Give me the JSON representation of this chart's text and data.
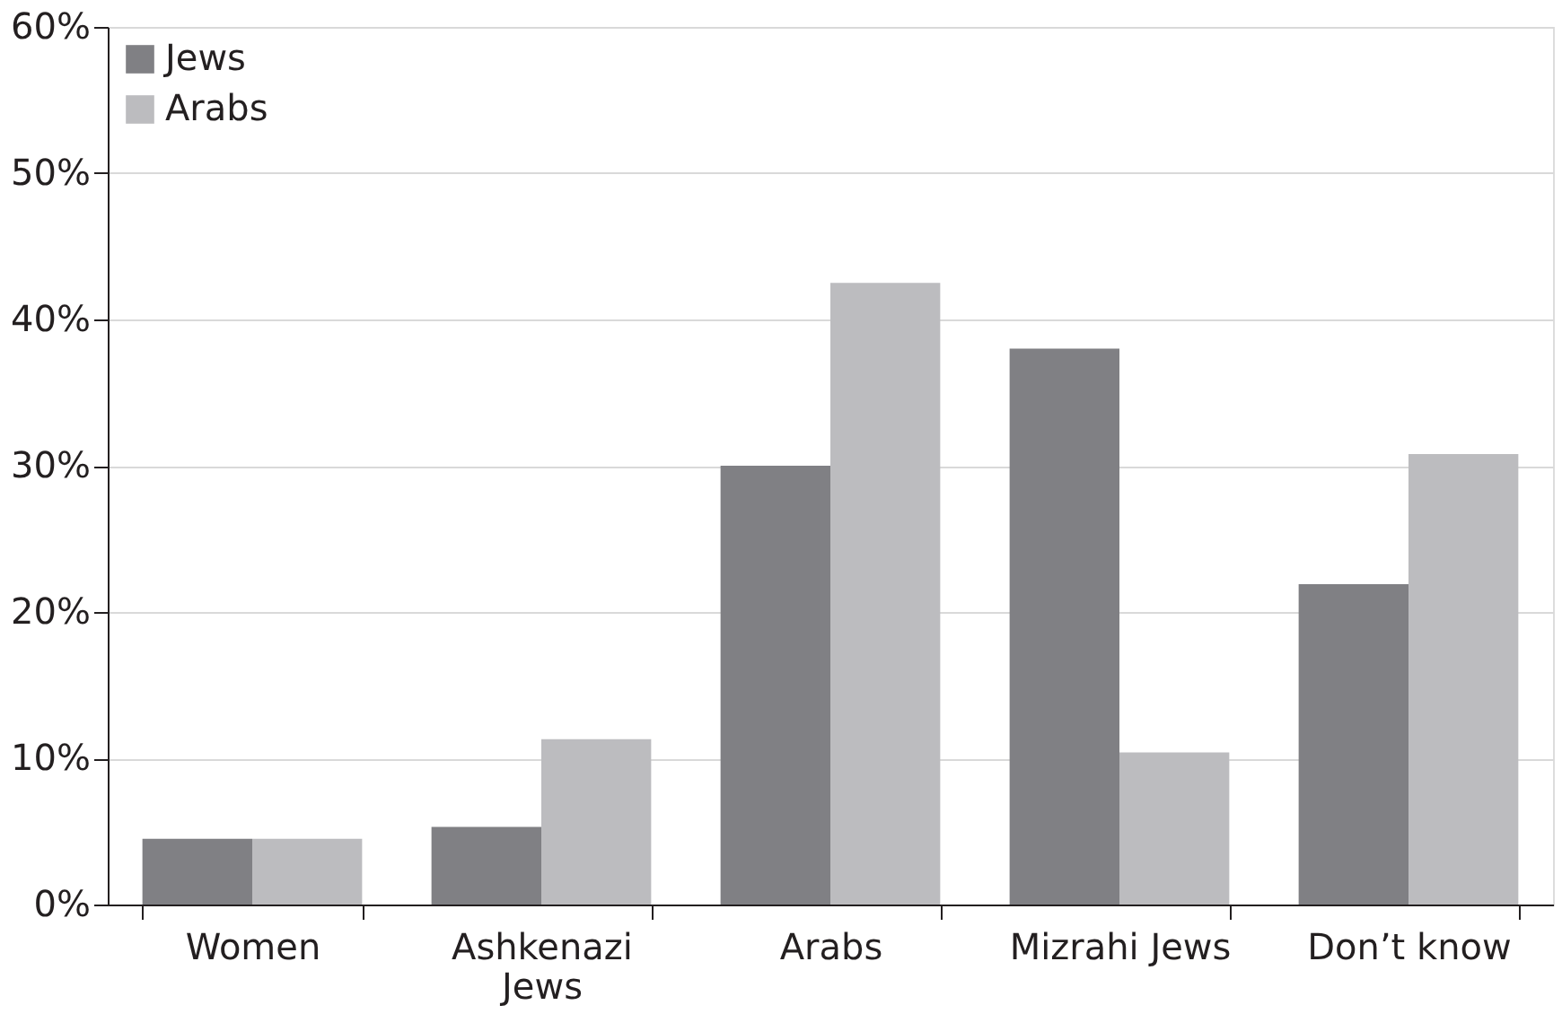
{
  "chart_data": {
    "type": "bar",
    "categories": [
      "Women",
      "Ashkenazi Jews",
      "Arabs",
      "Mizrahi Jews",
      "Don’t know"
    ],
    "series": [
      {
        "name": "Jews",
        "color": "#808084",
        "values": [
          4.5,
          5.3,
          30.0,
          38.0,
          21.9
        ]
      },
      {
        "name": "Arabs",
        "color": "#bcbcbf",
        "values": [
          4.5,
          11.3,
          42.5,
          10.4,
          30.8
        ]
      }
    ],
    "ylim": [
      0,
      60
    ],
    "yticks": [
      {
        "value": 0,
        "label": "0%"
      },
      {
        "value": 10,
        "label": "10%"
      },
      {
        "value": 20,
        "label": "20%"
      },
      {
        "value": 30,
        "label": "30%"
      },
      {
        "value": 40,
        "label": "40%"
      },
      {
        "value": 50,
        "label": "50%"
      },
      {
        "value": 60,
        "label": "60%"
      }
    ],
    "grid": "y",
    "legend": "top left"
  }
}
